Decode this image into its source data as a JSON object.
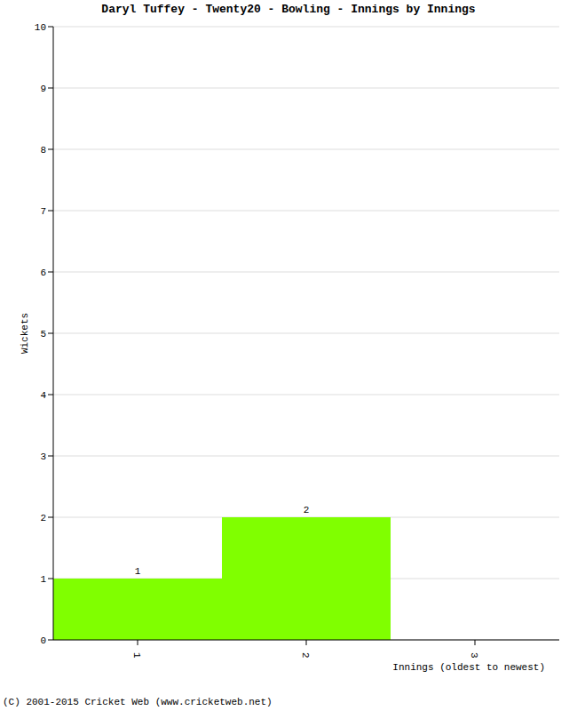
{
  "chart_data": {
    "type": "bar",
    "title": "Daryl Tuffey - Twenty20 - Bowling - Innings by Innings",
    "x_label": "Innings (oldest to newest)",
    "y_label": "Wickets",
    "footer": "(C) 2001-2015 Cricket Web (www.cricketweb.net)",
    "categories": [
      "1",
      "2",
      "3"
    ],
    "values": [
      1,
      2,
      0
    ],
    "color": "#80ff00",
    "ylim": [
      0,
      10
    ],
    "yticks": [
      0,
      1,
      2,
      3,
      4,
      5,
      6,
      7,
      8,
      9,
      10
    ],
    "grid": true,
    "data_labels": true
  }
}
